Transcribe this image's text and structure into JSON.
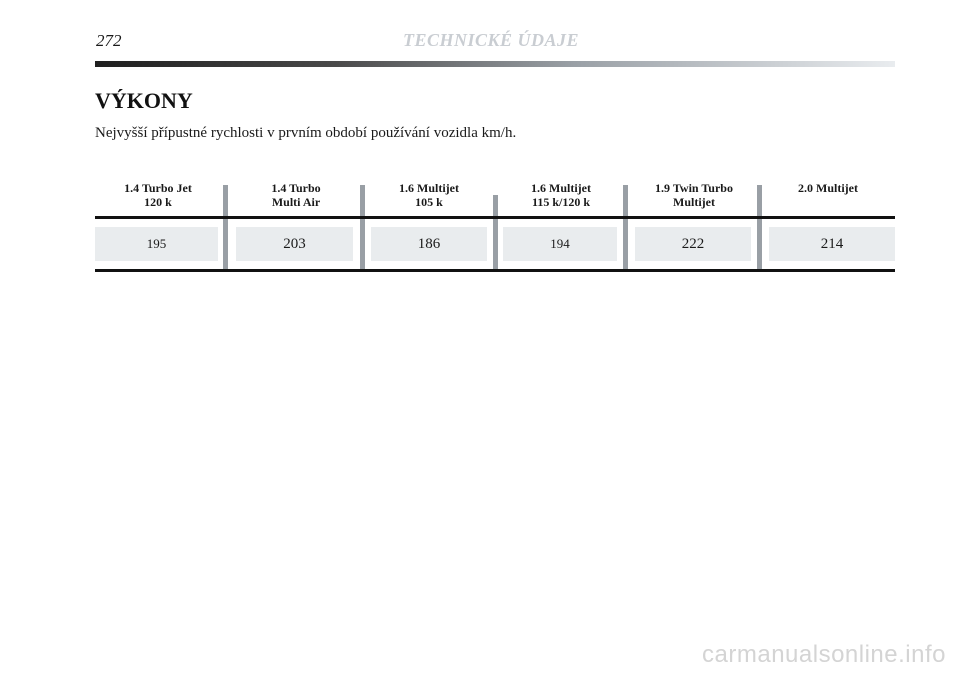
{
  "header": {
    "page_number": "272",
    "running_title": "TECHNICKÉ ÚDAJE"
  },
  "section": {
    "heading": "VÝKONY",
    "intro": "Nejvyšší přípustné rychlosti v prvním období používání vozidla km/h."
  },
  "table": {
    "columns": [
      {
        "header": "1.4 Turbo Jet\n120 k",
        "value": "195"
      },
      {
        "header": "1.4 Turbo\nMulti Air",
        "value": "203"
      },
      {
        "header": "1.6 Multijet\n105 k",
        "value": "186"
      },
      {
        "header": "1.6 Multijet\n115 k/120 k",
        "value": "194"
      },
      {
        "header": "1.9 Twin Turbo\nMultijet",
        "value": "222"
      },
      {
        "header": "2.0 Multijet",
        "value": "214"
      }
    ]
  },
  "watermark": "carmanualsonline.info"
}
